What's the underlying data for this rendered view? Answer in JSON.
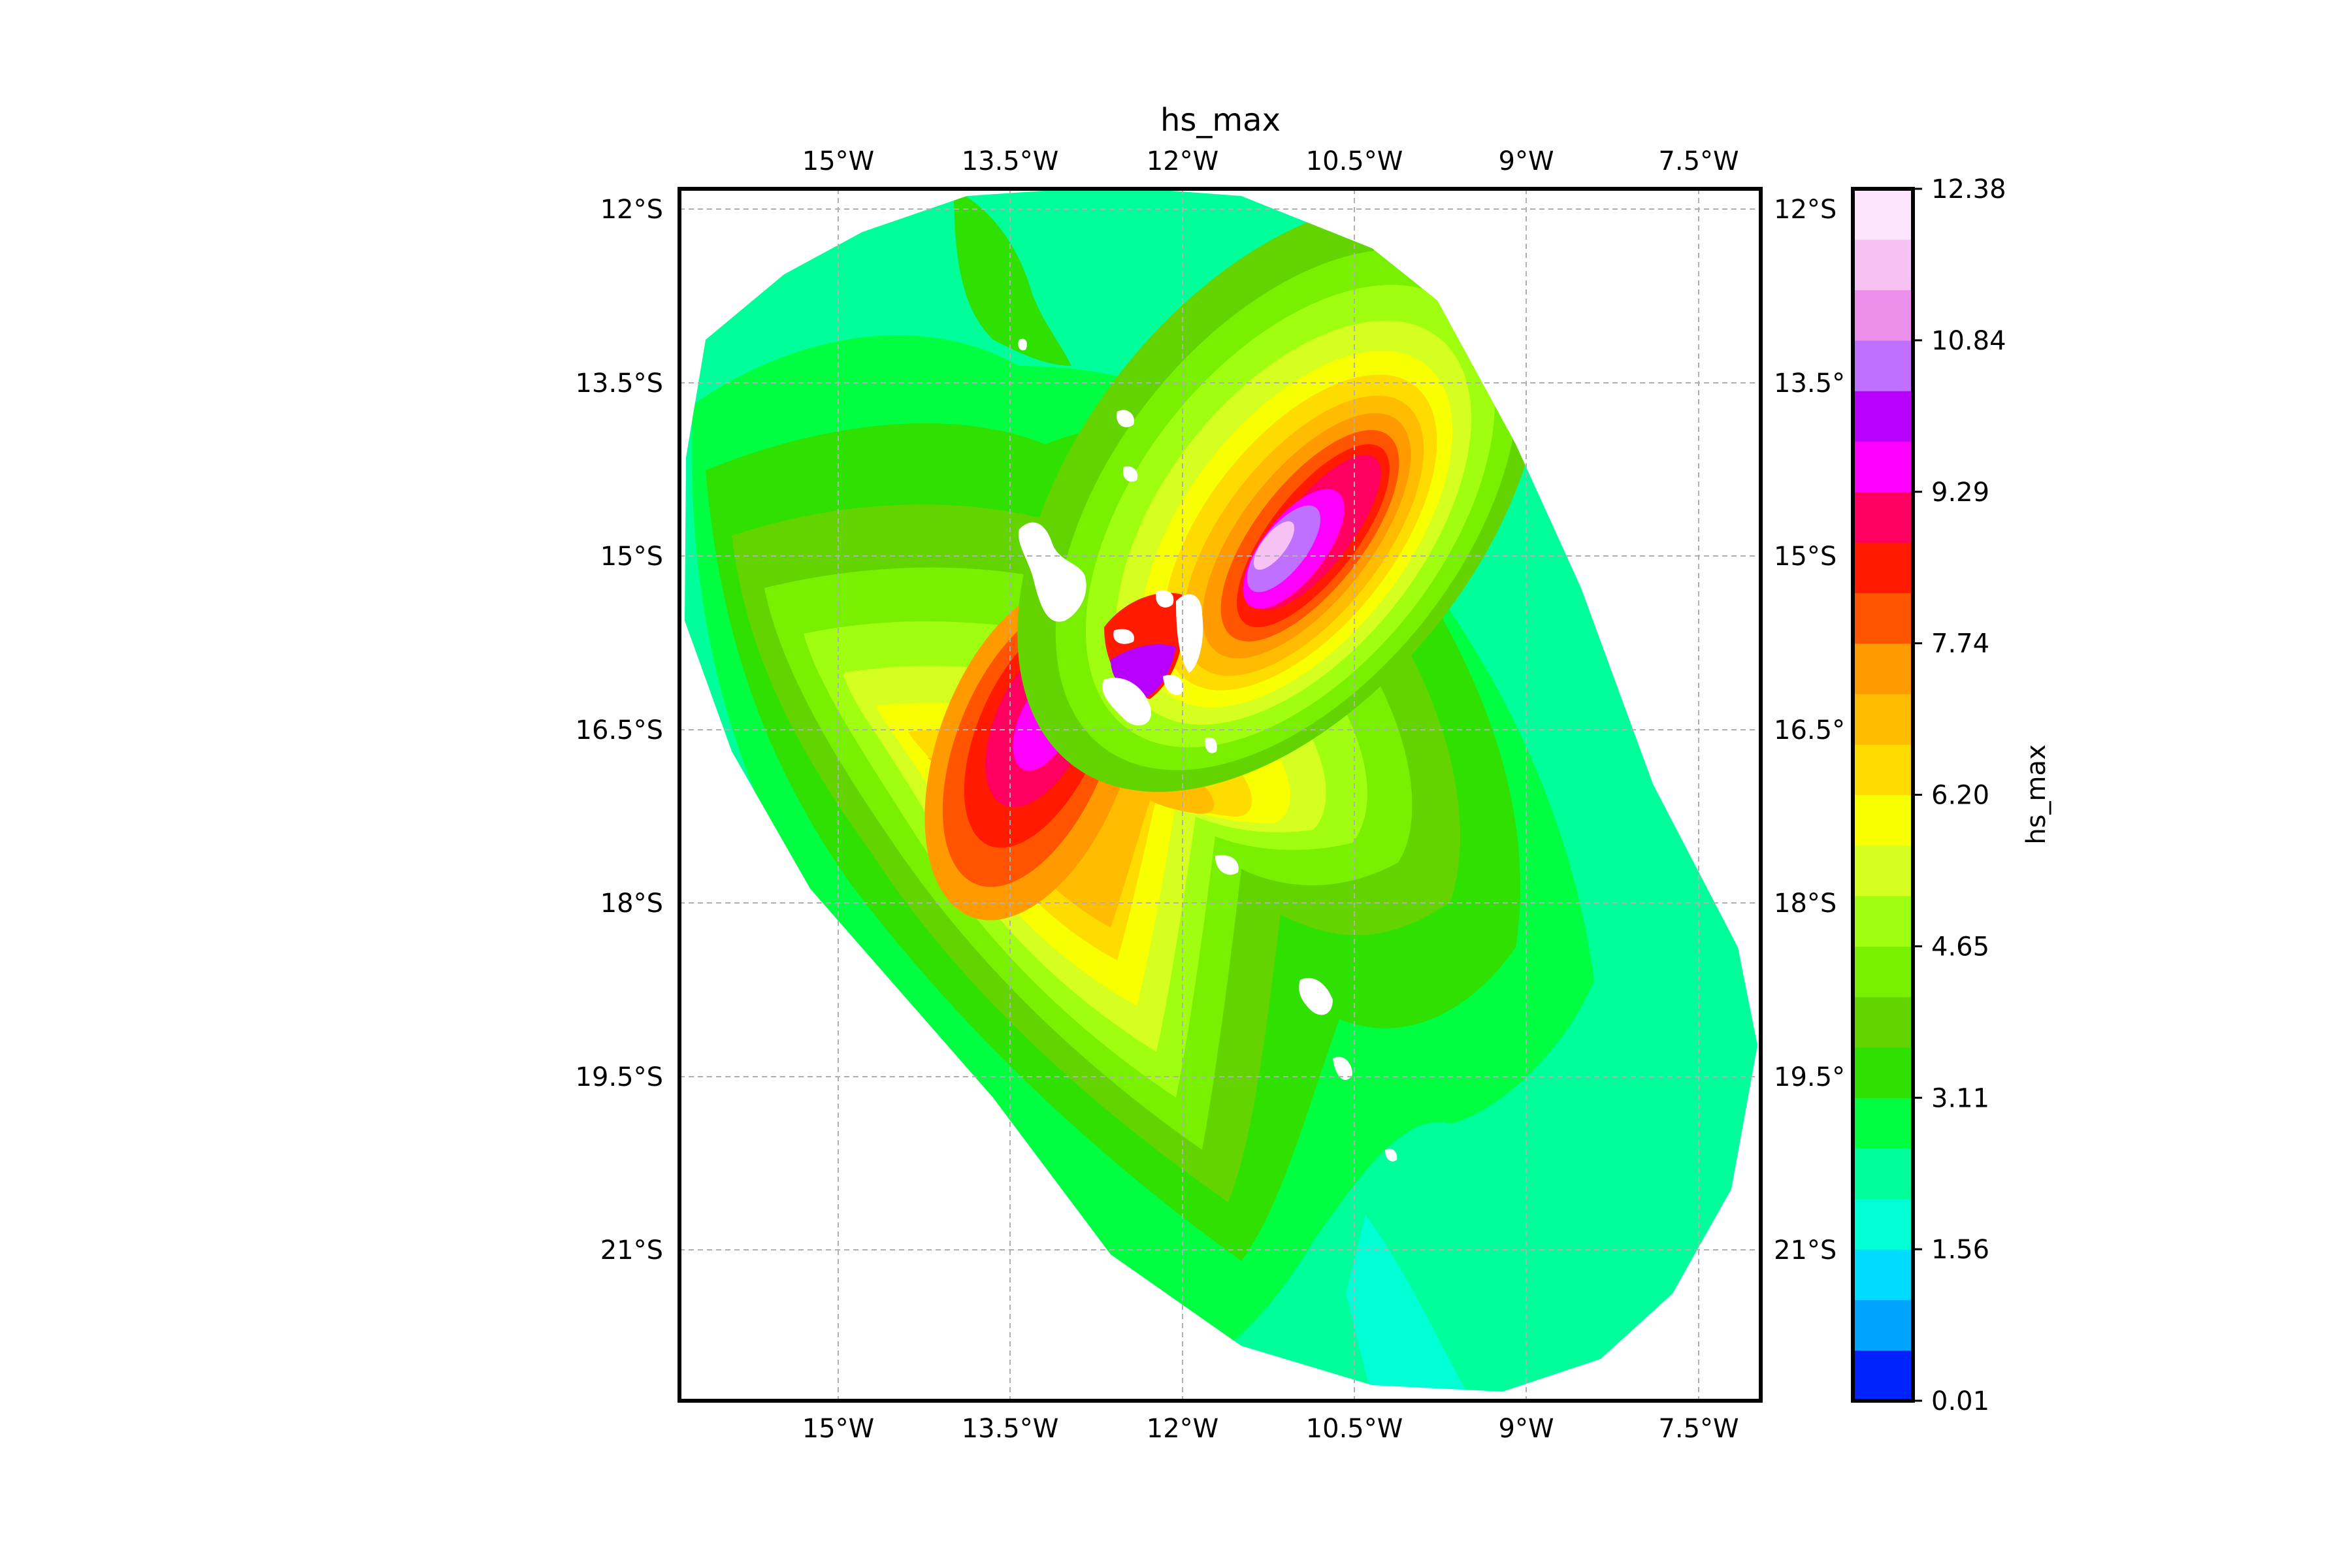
{
  "title": "hs_max",
  "map": {
    "lon_ticks": [
      "15°W",
      "13.5°W",
      "12°W",
      "10.5°W",
      "9°W",
      "7.5°W"
    ],
    "lat_ticks_left": [
      "12°S",
      "13.5°S",
      "15°S",
      "16.5°S",
      "18°S",
      "19.5°S",
      "21°S"
    ],
    "lat_ticks_right": [
      "12°S",
      "13.5°",
      "15°S",
      "16.5°",
      "18°S",
      "19.5°",
      "21°S"
    ],
    "grid": true,
    "variable": "hs_max"
  },
  "colorbar": {
    "label": "hs_max",
    "ticks": [
      "12.38",
      "10.84",
      "9.29",
      "7.74",
      "6.20",
      "4.65",
      "3.11",
      "1.56",
      "0.01"
    ],
    "min": 0.01,
    "max": 12.38,
    "colors": [
      "#0022ff",
      "#00a4ff",
      "#00dcff",
      "#00ffd4",
      "#00ff9a",
      "#00ff40",
      "#30e000",
      "#64d400",
      "#78f000",
      "#a0ff10",
      "#d4ff20",
      "#f8ff00",
      "#ffdc00",
      "#ffbc00",
      "#ff9a00",
      "#ff5400",
      "#ff1a00",
      "#ff0060",
      "#ff00ff",
      "#b800ff",
      "#c070ff",
      "#ec90ec",
      "#f6c2f4",
      "#fde6fd"
    ]
  }
}
